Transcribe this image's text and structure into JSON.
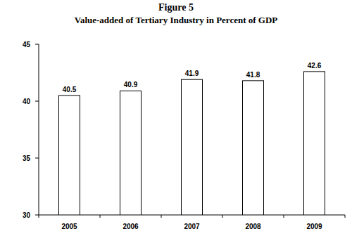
{
  "chart_data": {
    "type": "bar",
    "title": "Figure 5",
    "subtitle": "Value-added of Tertiary Industry in Percent of GDP",
    "categories": [
      "2005",
      "2006",
      "2007",
      "2008",
      "2009"
    ],
    "values": [
      40.5,
      40.9,
      41.9,
      41.8,
      42.6
    ],
    "color": "#ffffff",
    "ylim": [
      30,
      45
    ],
    "yticks": [
      30,
      35,
      40,
      45
    ],
    "grid": false,
    "data_labels": true
  }
}
